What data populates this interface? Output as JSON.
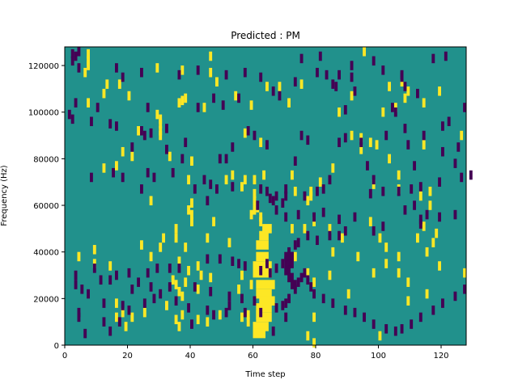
{
  "chart_data": {
    "type": "heatmap",
    "title": "Predicted : PM",
    "xlabel": "Time step",
    "ylabel": "Frequency (Hz)",
    "xlim": [
      0,
      128
    ],
    "ylim": [
      0,
      128000
    ],
    "xticks": [
      0,
      20,
      40,
      60,
      80,
      100,
      120
    ],
    "yticks": [
      0,
      20000,
      40000,
      60000,
      80000,
      100000,
      120000
    ],
    "colors": {
      "background": "#21918c",
      "high": "#fde725",
      "low": "#440154"
    },
    "grid": false,
    "cells_high": [
      [
        7,
        125000
      ],
      [
        7,
        122000
      ],
      [
        7,
        120000
      ],
      [
        6,
        117000
      ],
      [
        29,
        119000
      ],
      [
        37,
        118000
      ],
      [
        46,
        117000
      ],
      [
        46,
        124000
      ],
      [
        95,
        126000
      ],
      [
        13,
        112000
      ],
      [
        17,
        112000
      ],
      [
        48,
        113000
      ],
      [
        64,
        111000
      ],
      [
        68,
        111000
      ],
      [
        75,
        112000
      ],
      [
        103,
        111000
      ],
      [
        107,
        113000
      ],
      [
        109,
        109000
      ],
      [
        119,
        109000
      ],
      [
        12,
        108000
      ],
      [
        20,
        107000
      ],
      [
        37,
        105000
      ],
      [
        38,
        106000
      ],
      [
        54,
        107000
      ],
      [
        91,
        107000
      ],
      [
        108,
        106000
      ],
      [
        7,
        104000
      ],
      [
        36,
        104000
      ],
      [
        59,
        103000
      ],
      [
        71,
        104000
      ],
      [
        114,
        104000
      ],
      [
        44,
        102000
      ],
      [
        87,
        100000
      ],
      [
        101,
        100000
      ],
      [
        105,
        102000
      ],
      [
        29,
        99000
      ],
      [
        30,
        97000
      ],
      [
        30,
        95000
      ],
      [
        30,
        92000
      ],
      [
        23,
        92000
      ],
      [
        30,
        90000
      ],
      [
        57,
        91000
      ],
      [
        91,
        90000
      ],
      [
        94,
        89000
      ],
      [
        126,
        90000
      ],
      [
        62,
        87000
      ],
      [
        97,
        87000
      ],
      [
        99,
        86000
      ],
      [
        114,
        86000
      ],
      [
        94,
        84000
      ],
      [
        18,
        83000
      ],
      [
        21,
        81000
      ],
      [
        33,
        81000
      ],
      [
        40,
        79000
      ],
      [
        103,
        80000
      ],
      [
        12,
        76000
      ],
      [
        16,
        77000
      ],
      [
        85,
        76000
      ],
      [
        53,
        73000
      ],
      [
        63,
        73000
      ],
      [
        72,
        73000
      ],
      [
        106,
        73000
      ],
      [
        39,
        71000
      ],
      [
        51,
        71000
      ],
      [
        57,
        71000
      ],
      [
        60,
        71000
      ],
      [
        81,
        70000
      ],
      [
        56,
        68000
      ],
      [
        98,
        69000
      ],
      [
        60,
        65000
      ],
      [
        73,
        66000
      ],
      [
        78,
        66000
      ],
      [
        78,
        64000
      ],
      [
        106,
        67000
      ],
      [
        116,
        66000
      ],
      [
        113,
        64000
      ],
      [
        27,
        62000
      ],
      [
        40,
        61000
      ],
      [
        60,
        62000
      ],
      [
        61,
        59000
      ],
      [
        77,
        62000
      ],
      [
        116,
        60000
      ],
      [
        39,
        58000
      ],
      [
        60,
        58000
      ],
      [
        62,
        55000
      ],
      [
        40,
        56000
      ],
      [
        59,
        56000
      ],
      [
        62,
        53000
      ],
      [
        79,
        53000
      ],
      [
        40,
        53000
      ],
      [
        47,
        53000
      ],
      [
        76,
        50000
      ],
      [
        97,
        53000
      ],
      [
        114,
        51000
      ],
      [
        35,
        50000
      ],
      [
        72,
        50000
      ],
      [
        84,
        50000
      ],
      [
        31,
        46000
      ],
      [
        35,
        46000
      ],
      [
        45,
        46000
      ],
      [
        100,
        46000
      ],
      [
        117,
        44000
      ],
      [
        24,
        43000
      ],
      [
        30,
        42000
      ],
      [
        52,
        44000
      ],
      [
        88,
        46000
      ],
      [
        118,
        48000
      ],
      [
        9,
        41000
      ],
      [
        38,
        42000
      ],
      [
        102,
        42000
      ],
      [
        115,
        40000
      ],
      [
        112,
        46000
      ],
      [
        4,
        38000
      ],
      [
        27,
        38000
      ],
      [
        36,
        36000
      ],
      [
        73,
        38000
      ],
      [
        85,
        40000
      ],
      [
        93,
        38000
      ],
      [
        106,
        38000
      ],
      [
        9,
        35000
      ],
      [
        14,
        34000
      ],
      [
        42,
        34000
      ],
      [
        102,
        35000
      ],
      [
        39,
        32000
      ],
      [
        43,
        30000
      ],
      [
        46,
        29000
      ],
      [
        56,
        30000
      ],
      [
        77,
        31000
      ],
      [
        98,
        31000
      ],
      [
        106,
        31000
      ],
      [
        119,
        34000
      ],
      [
        127,
        31000
      ],
      [
        34,
        28000
      ],
      [
        35,
        26000
      ],
      [
        38,
        27000
      ],
      [
        59,
        26000
      ],
      [
        79,
        27000
      ],
      [
        84,
        30000
      ],
      [
        109,
        27000
      ],
      [
        90,
        22000
      ],
      [
        115,
        22000
      ],
      [
        109,
        19000
      ],
      [
        36,
        23000
      ],
      [
        37,
        21000
      ],
      [
        42,
        24000
      ],
      [
        55,
        24000
      ],
      [
        16,
        18000
      ],
      [
        18,
        14000
      ],
      [
        21,
        12000
      ],
      [
        25,
        14000
      ],
      [
        32,
        17000
      ],
      [
        37,
        13000
      ],
      [
        42,
        11000
      ],
      [
        45,
        10000
      ],
      [
        49,
        13000
      ],
      [
        56,
        12000
      ],
      [
        58,
        13000
      ],
      [
        61,
        13000
      ],
      [
        35,
        11000
      ],
      [
        16,
        12000
      ],
      [
        36,
        8000
      ],
      [
        19,
        8000
      ],
      [
        58,
        10000
      ],
      [
        79,
        12000
      ],
      [
        79,
        1000
      ],
      [
        77,
        4000
      ],
      [
        100,
        4000
      ]
    ],
    "cells_low": [
      [
        2,
        125000
      ],
      [
        3,
        124000
      ],
      [
        2,
        122000
      ],
      [
        4,
        126000
      ],
      [
        75,
        123000
      ],
      [
        81,
        124000
      ],
      [
        98,
        122000
      ],
      [
        117,
        123000
      ],
      [
        121,
        124000
      ],
      [
        91,
        120000
      ],
      [
        16,
        119000
      ],
      [
        42,
        118000
      ],
      [
        80,
        117000
      ],
      [
        83,
        116000
      ],
      [
        36,
        116000
      ],
      [
        51,
        116000
      ],
      [
        62,
        115000
      ],
      [
        91,
        115000
      ],
      [
        18,
        115000
      ],
      [
        57,
        117000
      ],
      [
        24,
        117000
      ],
      [
        101,
        118000
      ],
      [
        4,
        119000
      ],
      [
        73,
        113000
      ],
      [
        86,
        111000
      ],
      [
        108,
        111000
      ],
      [
        92,
        109000
      ],
      [
        66,
        109000
      ],
      [
        68,
        107000
      ],
      [
        47,
        106000
      ],
      [
        55,
        106000
      ],
      [
        107,
        115000
      ],
      [
        107,
        116000
      ],
      [
        87,
        116000
      ],
      [
        3,
        104000
      ],
      [
        10,
        102000
      ],
      [
        26,
        102000
      ],
      [
        42,
        102000
      ],
      [
        50,
        103000
      ],
      [
        89,
        101000
      ],
      [
        104,
        102000
      ],
      [
        105,
        100000
      ],
      [
        112,
        108000
      ],
      [
        127,
        102000
      ],
      [
        85,
        112000
      ],
      [
        2,
        97000
      ],
      [
        1,
        99000
      ],
      [
        8,
        96000
      ],
      [
        16,
        94000
      ],
      [
        14,
        95000
      ],
      [
        24,
        92000
      ],
      [
        25,
        90000
      ],
      [
        27,
        91000
      ],
      [
        32,
        93000
      ],
      [
        58,
        92000
      ],
      [
        60,
        90000
      ],
      [
        75,
        90000
      ],
      [
        77,
        88000
      ],
      [
        89,
        89000
      ],
      [
        87,
        87000
      ],
      [
        102,
        90000
      ],
      [
        108,
        93000
      ],
      [
        120,
        94000
      ],
      [
        122,
        96000
      ],
      [
        114,
        90000
      ],
      [
        94,
        87000
      ],
      [
        64,
        86000
      ],
      [
        53,
        85000
      ],
      [
        38,
        87000
      ],
      [
        32,
        84000
      ],
      [
        21,
        85000
      ],
      [
        120,
        83000
      ],
      [
        109,
        86000
      ],
      [
        125,
        85000
      ],
      [
        37,
        80000
      ],
      [
        49,
        80000
      ],
      [
        51,
        80000
      ],
      [
        73,
        79000
      ],
      [
        96,
        77000
      ],
      [
        111,
        77000
      ],
      [
        124,
        78000
      ],
      [
        129,
        73000
      ],
      [
        126,
        72000
      ],
      [
        119,
        70000
      ],
      [
        113,
        68000
      ],
      [
        110,
        67000
      ],
      [
        106,
        66000
      ],
      [
        98,
        71000
      ],
      [
        97,
        65000
      ],
      [
        101,
        66000
      ],
      [
        84,
        71000
      ],
      [
        82,
        67000
      ],
      [
        80,
        66000
      ],
      [
        76,
        64000
      ],
      [
        70,
        67000
      ],
      [
        70,
        64000
      ],
      [
        67,
        64000
      ],
      [
        64,
        66000
      ],
      [
        62,
        67000
      ],
      [
        53,
        68000
      ],
      [
        46,
        69000
      ],
      [
        48,
        67000
      ],
      [
        44,
        71000
      ],
      [
        34,
        74000
      ],
      [
        28,
        72000
      ],
      [
        26,
        74000
      ],
      [
        18,
        72000
      ],
      [
        15,
        74000
      ],
      [
        8,
        72000
      ],
      [
        24,
        67000
      ],
      [
        41,
        67000
      ],
      [
        45,
        62000
      ],
      [
        66,
        62000
      ],
      [
        69,
        61000
      ],
      [
        61,
        60000
      ],
      [
        65,
        63000
      ],
      [
        67,
        58000
      ],
      [
        70,
        55000
      ],
      [
        74,
        56000
      ],
      [
        79,
        55000
      ],
      [
        82,
        57000
      ],
      [
        87,
        54000
      ],
      [
        92,
        55000
      ],
      [
        108,
        58000
      ],
      [
        111,
        60000
      ],
      [
        115,
        56000
      ],
      [
        119,
        55000
      ],
      [
        124,
        56000
      ],
      [
        113,
        54000
      ],
      [
        113,
        52000
      ],
      [
        101,
        51000
      ],
      [
        98,
        49000
      ],
      [
        89,
        49000
      ],
      [
        87,
        47000
      ],
      [
        84,
        47000
      ],
      [
        80,
        45000
      ],
      [
        77,
        47000
      ],
      [
        73,
        43000
      ],
      [
        74,
        44000
      ],
      [
        71,
        40000
      ],
      [
        72,
        38000
      ],
      [
        70,
        36000
      ],
      [
        69,
        35000
      ],
      [
        71,
        34000
      ],
      [
        67,
        33000
      ],
      [
        65,
        31000
      ],
      [
        62,
        32000
      ],
      [
        64,
        35000
      ],
      [
        57,
        34000
      ],
      [
        55,
        35000
      ],
      [
        53,
        36000
      ],
      [
        49,
        37000
      ],
      [
        45,
        37000
      ],
      [
        36,
        33000
      ],
      [
        29,
        33000
      ],
      [
        33,
        33000
      ],
      [
        26,
        31000
      ],
      [
        20,
        31000
      ],
      [
        16,
        30000
      ],
      [
        14,
        28000
      ],
      [
        11,
        28000
      ],
      [
        9,
        33000
      ],
      [
        3,
        30000
      ],
      [
        3,
        26000
      ],
      [
        5,
        24000
      ],
      [
        7,
        22000
      ],
      [
        12,
        18000
      ],
      [
        18,
        17000
      ],
      [
        20,
        15000
      ],
      [
        25,
        18000
      ],
      [
        28,
        20000
      ],
      [
        30,
        22000
      ],
      [
        35,
        19000
      ],
      [
        39,
        16000
      ],
      [
        45,
        15000
      ],
      [
        47,
        13000
      ],
      [
        51,
        14000
      ],
      [
        57,
        14000
      ],
      [
        62,
        14000
      ],
      [
        69,
        17000
      ],
      [
        70,
        18000
      ],
      [
        71,
        20000
      ],
      [
        73,
        24000
      ],
      [
        74,
        27000
      ],
      [
        75,
        29000
      ],
      [
        76,
        31000
      ],
      [
        77,
        28000
      ],
      [
        78,
        25000
      ],
      [
        79,
        22000
      ],
      [
        82,
        20000
      ],
      [
        85,
        18000
      ],
      [
        89,
        15000
      ],
      [
        92,
        14000
      ],
      [
        95,
        12000
      ],
      [
        98,
        9000
      ],
      [
        102,
        7000
      ],
      [
        105,
        6000
      ],
      [
        107,
        7000
      ],
      [
        110,
        9000
      ],
      [
        113,
        12000
      ],
      [
        117,
        15000
      ],
      [
        120,
        18000
      ],
      [
        124,
        21000
      ],
      [
        127,
        24000
      ],
      [
        4,
        14000
      ],
      [
        4,
        12000
      ],
      [
        12,
        10000
      ],
      [
        17,
        10000
      ],
      [
        14,
        6000
      ],
      [
        6,
        5000
      ],
      [
        40,
        9000
      ],
      [
        66,
        6000
      ],
      [
        70,
        12000
      ],
      [
        67,
        16000
      ],
      [
        60,
        19000
      ],
      [
        56,
        20000
      ],
      [
        52,
        21000
      ],
      [
        52,
        17000
      ],
      [
        46,
        23000
      ],
      [
        41,
        25000
      ],
      [
        33,
        25000
      ],
      [
        27,
        25000
      ],
      [
        23,
        27000
      ],
      [
        21,
        24000
      ]
    ],
    "block_high": [
      [
        60,
        34000,
        6000
      ],
      [
        60,
        31000,
        6000
      ],
      [
        61,
        26000,
        6000
      ],
      [
        61,
        22000,
        5000
      ],
      [
        62,
        19000,
        5000
      ],
      [
        61,
        16000,
        5000
      ],
      [
        61,
        12000,
        5000
      ],
      [
        60,
        8000,
        5000
      ],
      [
        60,
        5000,
        4000
      ],
      [
        61,
        38000,
        4000
      ],
      [
        61,
        43000,
        4000
      ],
      [
        62,
        47000,
        3000
      ],
      [
        63,
        50000,
        3000
      ]
    ],
    "block_low": [
      [
        70,
        38000,
        3000
      ],
      [
        71,
        35000,
        2000
      ],
      [
        70,
        32000,
        2000
      ],
      [
        71,
        29000,
        2000
      ],
      [
        72,
        26000,
        2000
      ]
    ]
  }
}
